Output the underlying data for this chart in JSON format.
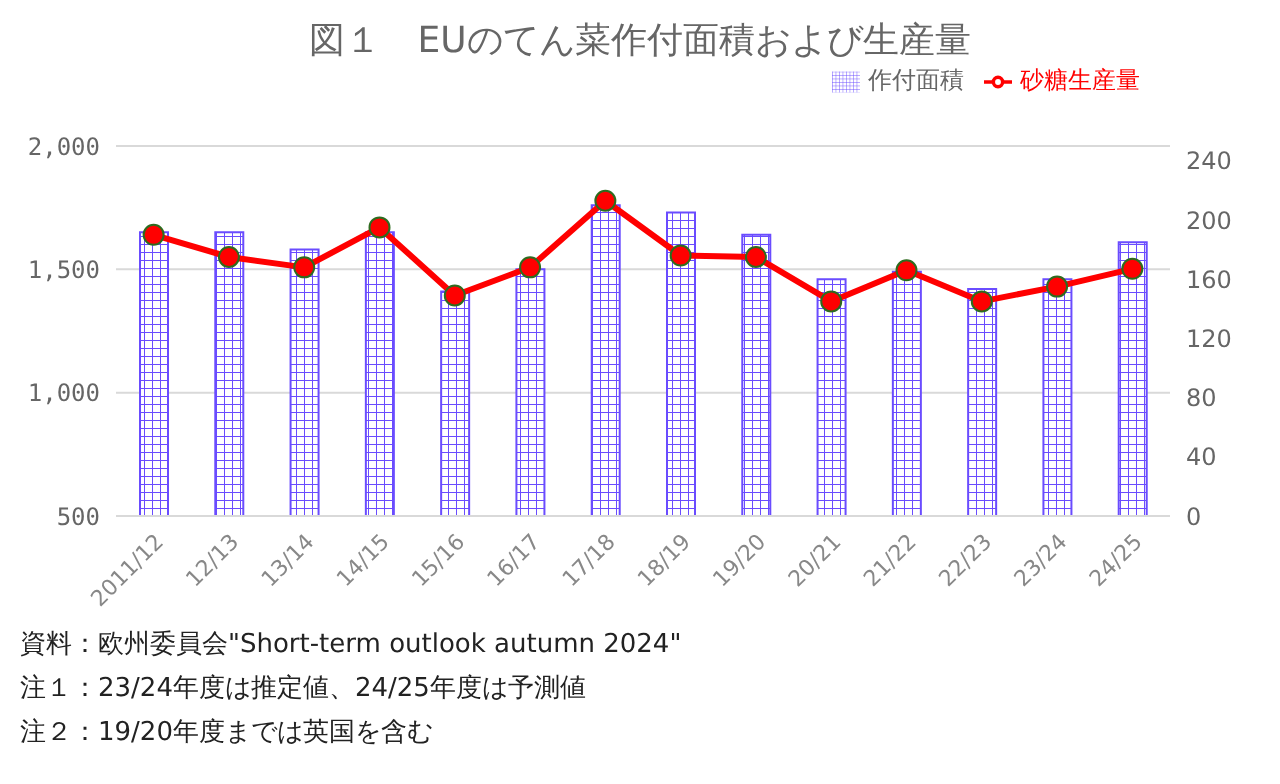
{
  "chart_data": {
    "type": "bar",
    "title": "図１　EUのてん菜作付面積および生産量",
    "categories": [
      "2011/12",
      "12/13",
      "13/14",
      "14/15",
      "15/16",
      "16/17",
      "17/18",
      "18/19",
      "19/20",
      "20/21",
      "21/22",
      "22/23",
      "23/24",
      "24/25"
    ],
    "series": [
      {
        "name": "作付面積",
        "color": "#6a4cff",
        "values": [
          1650,
          1650,
          1580,
          1650,
          1410,
          1500,
          1760,
          1730,
          1640,
          1460,
          1490,
          1420,
          1460,
          1610
        ]
      },
      {
        "name": "砂糖生産量",
        "type": "line",
        "axis": "y2",
        "color": "#ff0000",
        "marker": "circle",
        "values": [
          190,
          175,
          168,
          195,
          149,
          168,
          213,
          176,
          175,
          145,
          166,
          145,
          155,
          167
        ]
      }
    ],
    "ylim": [
      500,
      2000
    ],
    "yticks": [
      {
        "value": 500,
        "label": "500"
      },
      {
        "value": 1000,
        "label": "1,000"
      },
      {
        "value": 1500,
        "label": "1,500"
      },
      {
        "value": 2000,
        "label": "2,000"
      }
    ],
    "y2lim": [
      0,
      250
    ],
    "y2ticks": [
      0,
      40,
      80,
      120,
      160,
      200,
      240
    ],
    "grid": "y",
    "legend": "top right",
    "annotations": [
      "資料：欧州委員会\"Short-term outlook autumn 2024\"",
      "注１：23/24年度は推定値、24/25年度は予測値",
      "注２：19/20年度までは英国を含む"
    ]
  }
}
